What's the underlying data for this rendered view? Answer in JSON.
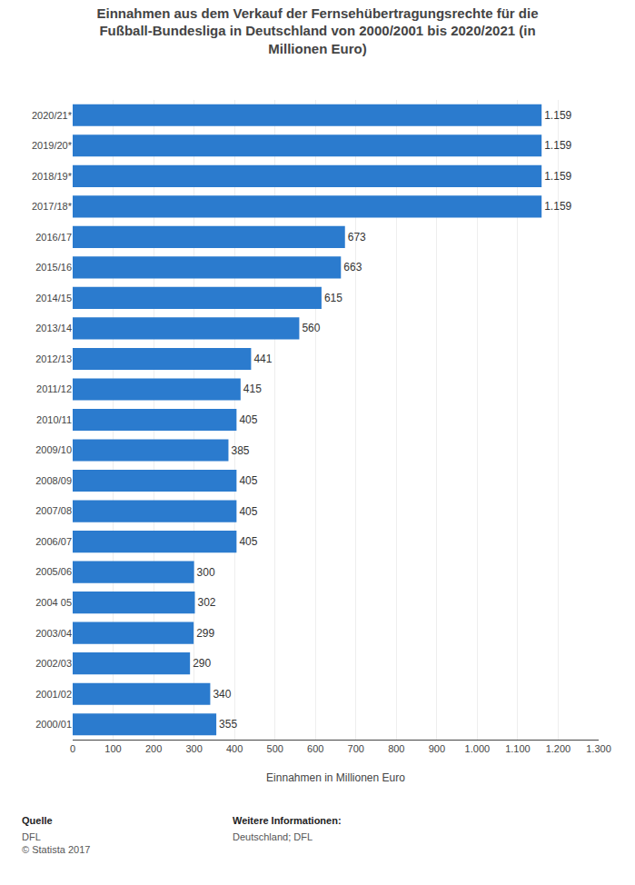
{
  "chart_data": {
    "type": "bar",
    "orientation": "horizontal",
    "title": "Einnahmen aus dem Verkauf der Fernsehübertragungsrechte für die\nFußball-Bundesliga in Deutschland von 2000/2001 bis 2020/2021 (in\nMillionen Euro)",
    "categories": [
      "2020/21*",
      "2019/20*",
      "2018/19*",
      "2017/18*",
      "2016/17",
      "2015/16",
      "2014/15",
      "2013/14",
      "2012/13",
      "2011/12",
      "2010/11",
      "2009/10",
      "2008/09",
      "2007/08",
      "2006/07",
      "2005/06",
      "2004 05",
      "2003/04",
      "2002/03",
      "2001/02",
      "2000/01"
    ],
    "values": [
      1159,
      1159,
      1159,
      1159,
      673,
      663,
      615,
      560,
      441,
      415,
      405,
      385,
      405,
      405,
      405,
      300,
      302,
      299,
      290,
      340,
      355
    ],
    "value_labels": [
      "1.159",
      "1.159",
      "1.159",
      "1.159",
      "673",
      "663",
      "615",
      "560",
      "441",
      "415",
      "405",
      "385",
      "405",
      "405",
      "405",
      "300",
      "302",
      "299",
      "290",
      "340",
      "355"
    ],
    "data_labels": true,
    "color": "#2b7bce",
    "xlabel": "Einnahmen in Millionen Euro",
    "xlim": [
      0,
      1300
    ],
    "xticks": [
      0,
      100,
      200,
      300,
      400,
      500,
      600,
      700,
      800,
      900,
      {
        "value": 1000,
        "label": "1.000"
      },
      {
        "value": 1100,
        "label": "1.100"
      },
      {
        "value": 1200,
        "label": "1.200"
      },
      {
        "value": 1300,
        "label": "1.300"
      }
    ],
    "grid": true,
    "annotations": [
      "Quelle",
      "DFL\n© Statista 2017",
      "Weitere Informationen:",
      "Deutschland; DFL"
    ]
  }
}
